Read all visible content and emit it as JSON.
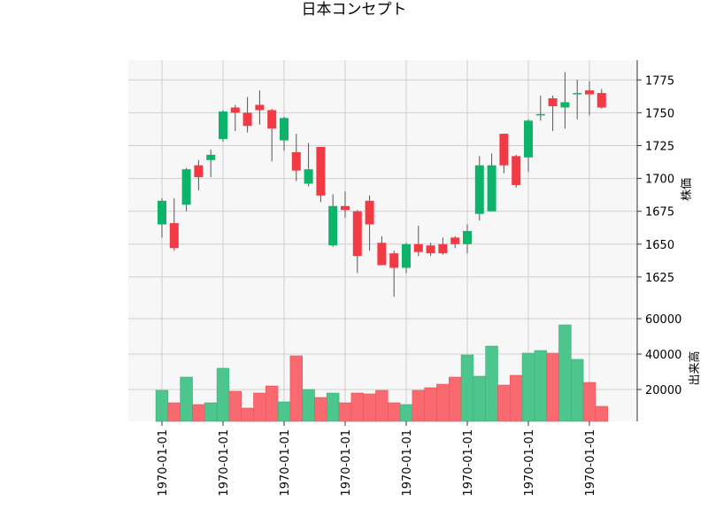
{
  "chart_data": {
    "type": "candlestick",
    "title": "日本コンセプト",
    "x_tick_labels": [
      "1970-01-01",
      "1970-01-01",
      "1970-01-01",
      "1970-01-01",
      "1970-01-01",
      "1970-01-01",
      "1970-01-01",
      "1970-01-01"
    ],
    "x_tick_candle_index": [
      0,
      5,
      10,
      15,
      20,
      25,
      30,
      35
    ],
    "price_panel": {
      "ylabel": "株価",
      "ylim": [
        1600,
        1790
      ],
      "yticks": [
        1625,
        1650,
        1675,
        1700,
        1725,
        1750,
        1775
      ],
      "candles": [
        {
          "open": 1665,
          "high": 1685,
          "low": 1655,
          "close": 1683
        },
        {
          "open": 1666,
          "high": 1685,
          "low": 1645,
          "close": 1647
        },
        {
          "open": 1680,
          "high": 1708,
          "low": 1675,
          "close": 1707
        },
        {
          "open": 1710,
          "high": 1714,
          "low": 1691,
          "close": 1701
        },
        {
          "open": 1714,
          "high": 1722,
          "low": 1701,
          "close": 1718
        },
        {
          "open": 1730,
          "high": 1752,
          "low": 1728,
          "close": 1751
        },
        {
          "open": 1754,
          "high": 1756,
          "low": 1736,
          "close": 1750
        },
        {
          "open": 1750,
          "high": 1762,
          "low": 1735,
          "close": 1740
        },
        {
          "open": 1756,
          "high": 1767,
          "low": 1741,
          "close": 1752
        },
        {
          "open": 1752,
          "high": 1753,
          "low": 1713,
          "close": 1738
        },
        {
          "open": 1729,
          "high": 1747,
          "low": 1721,
          "close": 1746
        },
        {
          "open": 1720,
          "high": 1734,
          "low": 1698,
          "close": 1706
        },
        {
          "open": 1696,
          "high": 1727,
          "low": 1694,
          "close": 1707
        },
        {
          "open": 1724,
          "high": 1724,
          "low": 1682,
          "close": 1687
        },
        {
          "open": 1649,
          "high": 1688,
          "low": 1648,
          "close": 1679
        },
        {
          "open": 1679,
          "high": 1690,
          "low": 1670,
          "close": 1676
        },
        {
          "open": 1675,
          "high": 1676,
          "low": 1628,
          "close": 1641
        },
        {
          "open": 1683,
          "high": 1687,
          "low": 1645,
          "close": 1665
        },
        {
          "open": 1651,
          "high": 1656,
          "low": 1634,
          "close": 1634
        },
        {
          "open": 1643,
          "high": 1645,
          "low": 1610,
          "close": 1632
        },
        {
          "open": 1632,
          "high": 1651,
          "low": 1628,
          "close": 1650
        },
        {
          "open": 1650,
          "high": 1664,
          "low": 1641,
          "close": 1644
        },
        {
          "open": 1649,
          "high": 1651,
          "low": 1641,
          "close": 1643
        },
        {
          "open": 1650,
          "high": 1655,
          "low": 1642,
          "close": 1643
        },
        {
          "open": 1655,
          "high": 1656,
          "low": 1647,
          "close": 1650
        },
        {
          "open": 1650,
          "high": 1665,
          "low": 1643,
          "close": 1660
        },
        {
          "open": 1673,
          "high": 1717,
          "low": 1668,
          "close": 1710
        },
        {
          "open": 1675,
          "high": 1719,
          "low": 1675,
          "close": 1710
        },
        {
          "open": 1734,
          "high": 1734,
          "low": 1704,
          "close": 1710
        },
        {
          "open": 1717,
          "high": 1718,
          "low": 1693,
          "close": 1695
        },
        {
          "open": 1716,
          "high": 1745,
          "low": 1705,
          "close": 1744
        },
        {
          "open": 1748,
          "high": 1763,
          "low": 1744,
          "close": 1749
        },
        {
          "open": 1761,
          "high": 1763,
          "low": 1736,
          "close": 1755
        },
        {
          "open": 1754,
          "high": 1781,
          "low": 1738,
          "close": 1758
        },
        {
          "open": 1765,
          "high": 1775,
          "low": 1745,
          "close": 1765
        },
        {
          "open": 1767,
          "high": 1774,
          "low": 1748,
          "close": 1764
        },
        {
          "open": 1765,
          "high": 1768,
          "low": 1753,
          "close": 1754
        }
      ]
    },
    "volume_panel": {
      "ylabel": "出来高",
      "ylim": [
        2000,
        65000
      ],
      "yticks": [
        20000,
        40000,
        60000
      ],
      "values": [
        19500,
        12500,
        27000,
        11500,
        12500,
        32000,
        19000,
        9500,
        18000,
        22000,
        13000,
        39000,
        20000,
        15500,
        18000,
        12500,
        18000,
        17500,
        19500,
        12500,
        11500,
        19500,
        21000,
        23000,
        27000,
        39500,
        27500,
        44500,
        22500,
        28000,
        40500,
        42000,
        40500,
        56500,
        37000,
        24000,
        10500
      ]
    },
    "up_color": "#26a69a",
    "down_color": "#ef5350",
    "candle_up_fill": "#0eb36a",
    "candle_down_fill": "#f23a44",
    "volume_up_fill": "#4cc68d",
    "volume_down_fill": "#f96970",
    "grid": true,
    "panel_background": "#f7f7f7",
    "grid_color": "#cfcfcf"
  }
}
